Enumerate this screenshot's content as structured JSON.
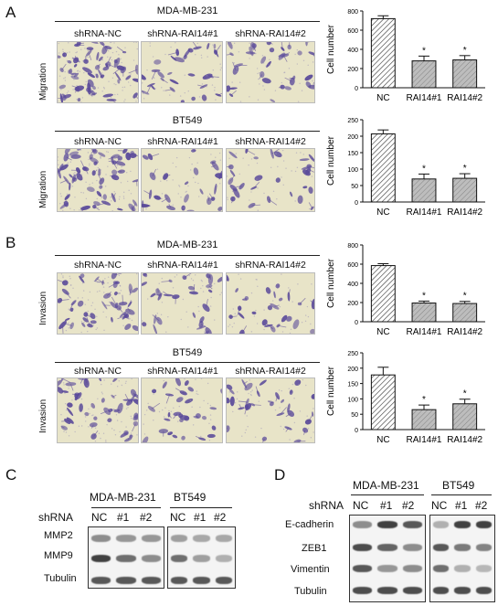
{
  "panels": {
    "A": {
      "letter": "A",
      "rows": [
        {
          "cell_line": "MDA-MB-231",
          "side_label": "Migration",
          "conditions": [
            "shRNA-NC",
            "shRNA-RAI14#1",
            "shRNA-RAI14#2"
          ]
        },
        {
          "cell_line": "BT549",
          "side_label": "Migration",
          "conditions": [
            "shRNA-NC",
            "shRNA-RAI14#1",
            "shRNA-RAI14#2"
          ]
        }
      ]
    },
    "B": {
      "letter": "B",
      "rows": [
        {
          "cell_line": "MDA-MB-231",
          "side_label": "Invasion",
          "conditions": [
            "shRNA-NC",
            "shRNA-RAI14#1",
            "shRNA-RAI14#2"
          ]
        },
        {
          "cell_line": "BT549",
          "side_label": "Invasion",
          "conditions": [
            "shRNA-NC",
            "shRNA-RAI14#1",
            "shRNA-RAI14#2"
          ]
        }
      ]
    },
    "C": {
      "letter": "C",
      "shrna_label": "shRNA",
      "groups": [
        {
          "cell_line": "MDA-MB-231",
          "lanes": [
            "NC",
            "#1",
            "#2"
          ]
        },
        {
          "cell_line": "BT549",
          "lanes": [
            "NC",
            "#1",
            "#2"
          ]
        }
      ],
      "proteins": [
        "MMP2",
        "MMP9",
        "Tubulin"
      ]
    },
    "D": {
      "letter": "D",
      "shrna_label": "shRNA",
      "groups": [
        {
          "cell_line": "MDA-MB-231",
          "lanes": [
            "NC",
            "#1",
            "#2"
          ]
        },
        {
          "cell_line": "BT549",
          "lanes": [
            "NC",
            "#1",
            "#2"
          ]
        }
      ],
      "proteins": [
        "E-cadherin",
        "ZEB1",
        "Vimentin",
        "Tubulin"
      ]
    }
  },
  "chart_data": [
    {
      "type": "bar",
      "panel": "A",
      "cell_line": "MDA-MB-231",
      "categories": [
        "NC",
        "RAI14#1",
        "RAI14#2"
      ],
      "values": [
        720,
        280,
        290
      ],
      "errors": [
        30,
        50,
        45
      ],
      "significance": [
        "",
        "*",
        "*"
      ],
      "ylabel": "Cell number",
      "ylim": [
        0,
        800
      ],
      "yticks": [
        0,
        200,
        400,
        600,
        800
      ]
    },
    {
      "type": "bar",
      "panel": "A",
      "cell_line": "BT549",
      "categories": [
        "NC",
        "RAI14#1",
        "RAI14#2"
      ],
      "values": [
        207,
        70,
        72
      ],
      "errors": [
        12,
        15,
        14
      ],
      "significance": [
        "",
        "*",
        "*"
      ],
      "ylabel": "Cell number",
      "ylim": [
        0,
        250
      ],
      "yticks": [
        0,
        50,
        100,
        150,
        200,
        250
      ]
    },
    {
      "type": "bar",
      "panel": "B",
      "cell_line": "MDA-MB-231",
      "categories": [
        "NC",
        "RAI14#1",
        "RAI14#2"
      ],
      "values": [
        585,
        195,
        190
      ],
      "errors": [
        20,
        20,
        22
      ],
      "significance": [
        "",
        "*",
        "*"
      ],
      "ylabel": "Cell number",
      "ylim": [
        0,
        800
      ],
      "yticks": [
        0,
        200,
        400,
        600,
        800
      ]
    },
    {
      "type": "bar",
      "panel": "B",
      "cell_line": "BT549",
      "categories": [
        "NC",
        "RAI14#1",
        "RAI14#2"
      ],
      "values": [
        178,
        65,
        84
      ],
      "errors": [
        25,
        15,
        15
      ],
      "significance": [
        "",
        "*",
        "*"
      ],
      "ylabel": "Cell number",
      "ylim": [
        0,
        250
      ],
      "yticks": [
        0,
        50,
        100,
        150,
        200,
        250
      ]
    }
  ],
  "colors": {
    "stain": "#5a4a9a",
    "background": "#e8e4c8",
    "bar_nc": "#ffffff",
    "bar_kd": "#bdbdbd"
  }
}
